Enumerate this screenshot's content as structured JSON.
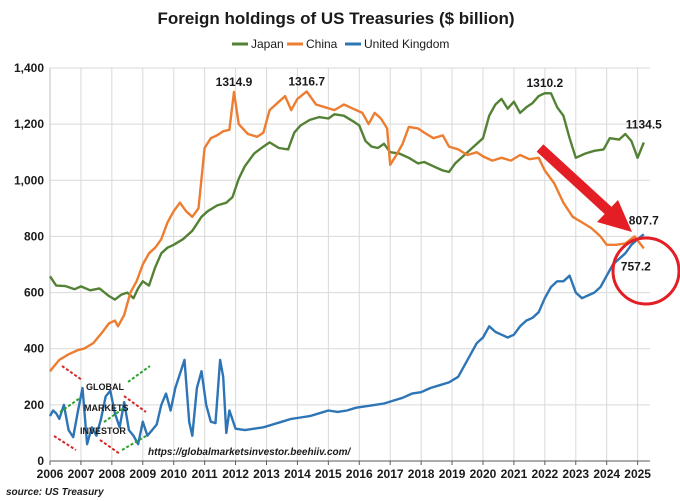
{
  "chart_data": {
    "type": "line",
    "title": "Foreign holdings of US Treasuries ($ billion)",
    "xlabel": "",
    "ylabel": "",
    "xlim": [
      2006.0,
      2025.4
    ],
    "ylim": [
      0,
      1400
    ],
    "yticks": [
      0,
      200,
      400,
      600,
      800,
      1000,
      1200,
      1400
    ],
    "ytick_labels": [
      "0",
      "200",
      "400",
      "600",
      "800",
      "1,000",
      "1,200",
      "1,400"
    ],
    "xticks": [
      2006,
      2007,
      2008,
      2009,
      2010,
      2011,
      2012,
      2013,
      2014,
      2015,
      2016,
      2017,
      2018,
      2019,
      2020,
      2021,
      2022,
      2023,
      2024,
      2025
    ],
    "xtick_labels": [
      "2006",
      "2007",
      "2008",
      "2009",
      "2010",
      "2011",
      "2012",
      "2013",
      "2014",
      "2015",
      "2016",
      "2017",
      "2018",
      "2019",
      "2020",
      "2021",
      "2022",
      "2023",
      "2024",
      "2025"
    ],
    "grid": true,
    "legend_position": "top-center",
    "series": [
      {
        "name": "Japan",
        "color": "#548235",
        "x": [
          2006.0,
          2006.2,
          2006.5,
          2006.8,
          2007.0,
          2007.3,
          2007.6,
          2007.9,
          2008.1,
          2008.3,
          2008.5,
          2008.7,
          2008.85,
          2009.0,
          2009.2,
          2009.4,
          2009.6,
          2009.8,
          2010.0,
          2010.3,
          2010.6,
          2010.9,
          2011.1,
          2011.4,
          2011.7,
          2011.9,
          2012.1,
          2012.3,
          2012.6,
          2012.9,
          2013.1,
          2013.4,
          2013.7,
          2013.9,
          2014.1,
          2014.4,
          2014.7,
          2015.0,
          2015.2,
          2015.5,
          2015.8,
          2016.0,
          2016.2,
          2016.4,
          2016.6,
          2016.8,
          2017.0,
          2017.3,
          2017.6,
          2017.9,
          2018.1,
          2018.4,
          2018.7,
          2018.9,
          2019.1,
          2019.4,
          2019.7,
          2020.0,
          2020.2,
          2020.4,
          2020.6,
          2020.8,
          2021.0,
          2021.2,
          2021.4,
          2021.6,
          2021.8,
          2022.0,
          2022.2,
          2022.4,
          2022.6,
          2022.8,
          2023.0,
          2023.3,
          2023.6,
          2023.9,
          2024.1,
          2024.4,
          2024.6,
          2024.8,
          2025.0,
          2025.2
        ],
        "values": [
          658,
          625,
          623,
          612,
          622,
          608,
          615,
          588,
          575,
          592,
          600,
          580,
          615,
          640,
          625,
          690,
          740,
          760,
          770,
          790,
          820,
          870,
          890,
          910,
          920,
          940,
          1005,
          1050,
          1095,
          1120,
          1135,
          1115,
          1110,
          1170,
          1195,
          1215,
          1225,
          1220,
          1235,
          1230,
          1210,
          1195,
          1140,
          1120,
          1115,
          1130,
          1100,
          1095,
          1080,
          1060,
          1065,
          1050,
          1035,
          1030,
          1060,
          1090,
          1120,
          1150,
          1230,
          1270,
          1290,
          1255,
          1280,
          1240,
          1260,
          1275,
          1300,
          1310.2,
          1310,
          1260,
          1230,
          1150,
          1080,
          1095,
          1105,
          1110,
          1150,
          1145,
          1165,
          1140,
          1080,
          1134.5
        ]
      },
      {
        "name": "China",
        "color": "#ED7D31",
        "x": [
          2006.0,
          2006.3,
          2006.6,
          2006.9,
          2007.1,
          2007.4,
          2007.7,
          2007.9,
          2008.1,
          2008.2,
          2008.4,
          2008.6,
          2008.8,
          2009.0,
          2009.2,
          2009.4,
          2009.6,
          2009.8,
          2010.0,
          2010.2,
          2010.4,
          2010.6,
          2010.8,
          2011.0,
          2011.2,
          2011.4,
          2011.6,
          2011.8,
          2011.95,
          2012.1,
          2012.4,
          2012.7,
          2012.9,
          2013.1,
          2013.4,
          2013.6,
          2013.8,
          2014.0,
          2014.3,
          2014.6,
          2014.9,
          2015.2,
          2015.5,
          2015.8,
          2016.1,
          2016.3,
          2016.5,
          2016.7,
          2016.9,
          2017.0,
          2017.2,
          2017.4,
          2017.6,
          2017.9,
          2018.1,
          2018.4,
          2018.7,
          2018.9,
          2019.2,
          2019.5,
          2019.8,
          2020.0,
          2020.3,
          2020.6,
          2020.9,
          2021.2,
          2021.5,
          2021.8,
          2022.0,
          2022.3,
          2022.6,
          2022.9,
          2023.2,
          2023.5,
          2023.8,
          2024.0,
          2024.3,
          2024.6,
          2024.9,
          2025.2
        ],
        "values": [
          320,
          360,
          380,
          395,
          400,
          420,
          460,
          490,
          500,
          480,
          520,
          600,
          640,
          700,
          740,
          760,
          790,
          850,
          890,
          920,
          890,
          870,
          900,
          1115,
          1150,
          1160,
          1175,
          1180,
          1314.9,
          1200,
          1165,
          1155,
          1170,
          1250,
          1280,
          1300,
          1250,
          1290,
          1316.7,
          1270,
          1260,
          1250,
          1270,
          1255,
          1240,
          1200,
          1240,
          1220,
          1185,
          1055,
          1090,
          1130,
          1190,
          1185,
          1170,
          1150,
          1160,
          1120,
          1110,
          1090,
          1100,
          1085,
          1070,
          1080,
          1070,
          1090,
          1075,
          1080,
          1035,
          990,
          920,
          870,
          850,
          830,
          800,
          770,
          770,
          775,
          800,
          757.2
        ]
      },
      {
        "name": "United Kingdom",
        "color": "#2E75B6",
        "x": [
          2006.0,
          2006.1,
          2006.2,
          2006.3,
          2006.45,
          2006.6,
          2006.75,
          2006.9,
          2007.05,
          2007.2,
          2007.35,
          2007.5,
          2007.65,
          2007.8,
          2007.95,
          2008.1,
          2008.25,
          2008.4,
          2008.55,
          2008.7,
          2008.85,
          2009.0,
          2009.15,
          2009.3,
          2009.45,
          2009.6,
          2009.75,
          2009.9,
          2010.05,
          2010.2,
          2010.35,
          2010.5,
          2010.6,
          2010.75,
          2010.9,
          2011.05,
          2011.2,
          2011.35,
          2011.5,
          2011.6,
          2011.7,
          2011.8,
          2012.0,
          2012.3,
          2012.6,
          2012.9,
          2013.2,
          2013.5,
          2013.8,
          2014.1,
          2014.4,
          2014.7,
          2015.0,
          2015.3,
          2015.6,
          2015.9,
          2016.2,
          2016.5,
          2016.8,
          2017.1,
          2017.4,
          2017.7,
          2018.0,
          2018.3,
          2018.6,
          2018.9,
          2019.2,
          2019.4,
          2019.6,
          2019.8,
          2020.0,
          2020.2,
          2020.4,
          2020.6,
          2020.8,
          2021.0,
          2021.2,
          2021.4,
          2021.6,
          2021.8,
          2022.0,
          2022.2,
          2022.4,
          2022.6,
          2022.8,
          2023.0,
          2023.2,
          2023.4,
          2023.6,
          2023.8,
          2024.0,
          2024.2,
          2024.4,
          2024.6,
          2024.8,
          2025.0,
          2025.2
        ],
        "values": [
          160,
          180,
          170,
          150,
          200,
          110,
          85,
          175,
          260,
          60,
          120,
          90,
          150,
          230,
          250,
          170,
          120,
          210,
          110,
          90,
          60,
          140,
          90,
          110,
          130,
          200,
          240,
          180,
          260,
          310,
          360,
          140,
          90,
          260,
          320,
          200,
          140,
          135,
          360,
          300,
          100,
          180,
          115,
          110,
          115,
          120,
          130,
          140,
          150,
          155,
          160,
          170,
          180,
          175,
          180,
          190,
          195,
          200,
          205,
          215,
          225,
          240,
          245,
          260,
          270,
          280,
          300,
          340,
          380,
          420,
          440,
          480,
          460,
          450,
          440,
          450,
          480,
          500,
          510,
          530,
          580,
          620,
          640,
          640,
          660,
          600,
          580,
          590,
          600,
          620,
          660,
          700,
          720,
          740,
          770,
          790,
          807.7
        ]
      }
    ],
    "annotations": [
      {
        "label": "1314.9",
        "x": 2011.95,
        "y": 1314.9
      },
      {
        "label": "1316.7",
        "x": 2014.3,
        "y": 1316.7
      },
      {
        "label": "1310.2",
        "x": 2022.0,
        "y": 1310.2
      },
      {
        "label": "1134.5",
        "x": 2025.2,
        "y": 1134.5
      },
      {
        "label": "807.7",
        "x": 2025.2,
        "y": 807.7
      },
      {
        "label": "757.2",
        "x": 2025.2,
        "y": 757.2
      }
    ],
    "url": "https://globalmarketsinvestor.beehiiv.com/",
    "source": "source: US Treasury",
    "logo_words": [
      "GLOBAL",
      "MARKETS",
      "INVESTOR"
    ],
    "highlight_color": "#E31E24"
  }
}
